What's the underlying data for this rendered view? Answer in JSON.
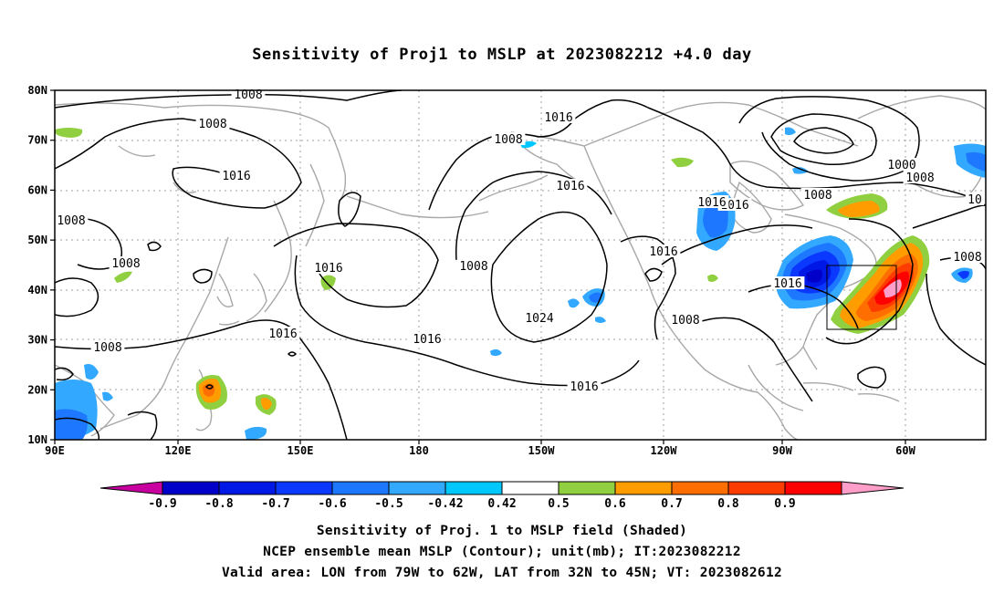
{
  "title": "Sensitivity of Proj1 to MSLP at 2023082212 +4.0 day",
  "map": {
    "lat_labels": [
      "80N",
      "70N",
      "60N",
      "50N",
      "40N",
      "30N",
      "20N",
      "10N"
    ],
    "lon_labels": [
      "90E",
      "120E",
      "150E",
      "180",
      "150W",
      "120W",
      "90W",
      "60W"
    ],
    "lon_range": [
      90,
      318
    ],
    "lat_range": [
      10,
      80
    ],
    "grid": "dotted",
    "valid_area_box": {
      "lon": [
        -79,
        -62
      ],
      "lat": [
        32,
        45
      ]
    },
    "contour_labels": [
      "1008",
      "1008",
      "1016",
      "1008",
      "1016",
      "1016",
      "1000",
      "1008",
      "1016",
      "10",
      "1008",
      "1008",
      "1008",
      "1016",
      "1008",
      "1024",
      "1016",
      "1016",
      "1016",
      "1008",
      "1016",
      "1016",
      "1008",
      "1008",
      "1016"
    ]
  },
  "colorbar": {
    "labels": [
      "-0.9",
      "-0.8",
      "-0.7",
      "-0.6",
      "-0.5",
      "-0.42",
      "0.42",
      "0.5",
      "0.6",
      "0.7",
      "0.8",
      "0.9"
    ],
    "colors": [
      "#c800a0",
      "#0000c8",
      "#0018e6",
      "#0a38ff",
      "#1e78ff",
      "#32a8ff",
      "#00c8ff",
      "#ffffff",
      "#90d040",
      "#ff9c00",
      "#ff6e00",
      "#ff3c00",
      "#ff0000",
      "#ff9ec8"
    ]
  },
  "captions": [
    "Sensitivity of Proj. 1 to MSLP field (Shaded)",
    "NCEP ensemble mean MSLP (Contour); unit(mb); IT:2023082212",
    "Valid area: LON from 79W to 62W, LAT from 32N to 45N; VT: 2023082612"
  ]
}
